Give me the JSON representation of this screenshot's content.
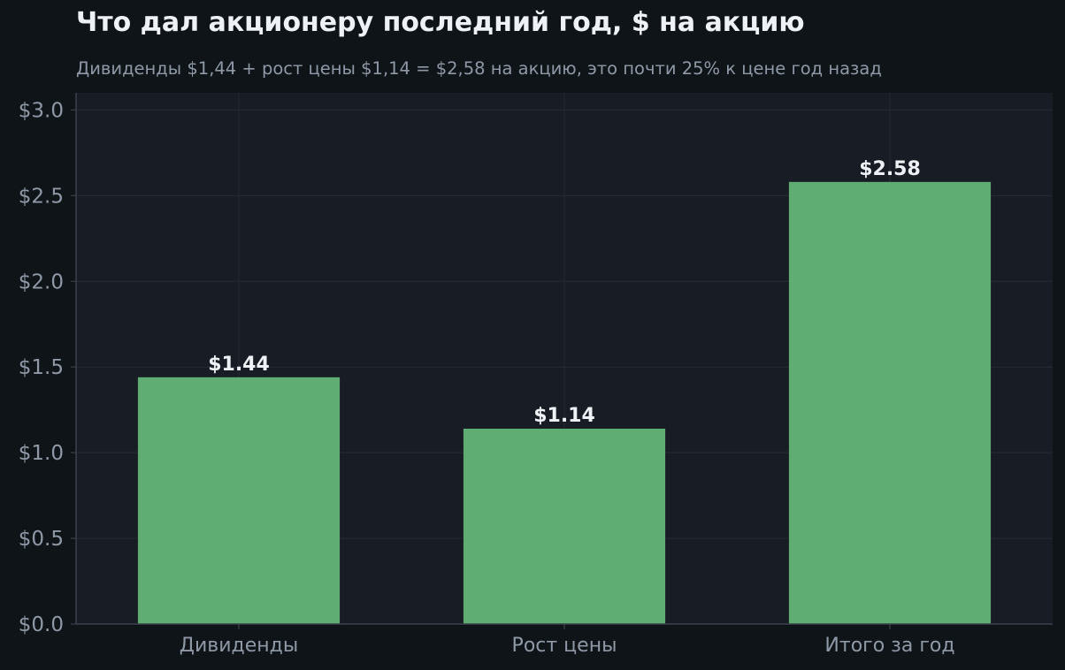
{
  "title": "Что дал акционеру последний год, $ на акцию",
  "subtitle": "Дивиденды $1,44 + рост цены $1,14 = $2,58 на акцию, это почти 25% к цене год назад",
  "colors": {
    "page_background": "#0f1419",
    "plot_background": "#181c24",
    "bar": "#5fad72",
    "grid": "#262b35",
    "axis": "#3a404b",
    "tick_text": "#8f99a6",
    "value_text": "#eef1f5"
  },
  "chart_data": {
    "type": "bar",
    "categories": [
      "Дивиденды",
      "Рост цены",
      "Итого за год"
    ],
    "values": [
      1.44,
      1.14,
      2.58
    ],
    "value_labels": [
      "$1.44",
      "$1.14",
      "$2.58"
    ],
    "ylim": [
      0,
      3.1
    ],
    "yticks": [
      0,
      0.5,
      1.0,
      1.5,
      2.0,
      2.5,
      3.0
    ],
    "ytick_labels": [
      "$0.0",
      "$0.5",
      "$1.0",
      "$1.5",
      "$2.0",
      "$2.5",
      "$3.0"
    ],
    "grid": true,
    "legend": false
  }
}
